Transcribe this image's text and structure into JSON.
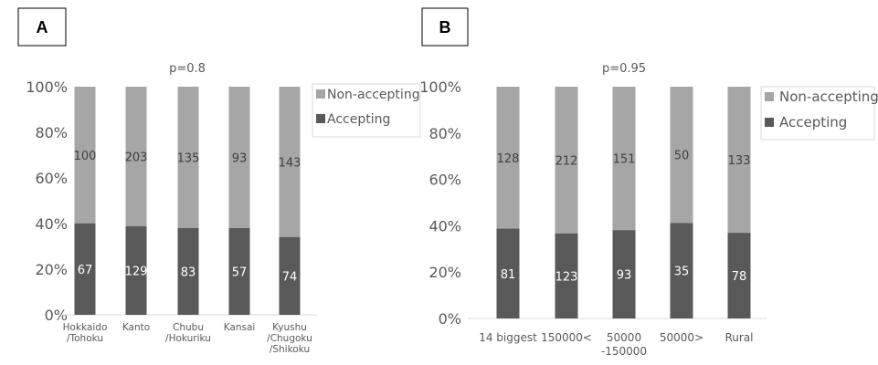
{
  "chart_data": [
    {
      "panel": "A",
      "type": "bar",
      "stacked": "percent",
      "annotation": "p=0.8",
      "categories": [
        "Hokkaido\n/Tohoku",
        "Kanto",
        "Chubu\n/Hokuriku",
        "Kansai",
        "Kyushu\n/Chugoku\n/Shikoku"
      ],
      "series": [
        {
          "name": "Accepting",
          "values": [
            67,
            129,
            83,
            57,
            74
          ],
          "color": "#595959"
        },
        {
          "name": "Non-accepting",
          "values": [
            100,
            203,
            135,
            93,
            143
          ],
          "color": "#a6a6a6"
        }
      ],
      "yticks": [
        "0%",
        "20%",
        "40%",
        "60%",
        "80%",
        "100%"
      ],
      "ylim": [
        0,
        100
      ],
      "legend": "right",
      "grid": false
    },
    {
      "panel": "B",
      "type": "bar",
      "stacked": "percent",
      "annotation": "p=0.95",
      "categories": [
        "14 biggest",
        "150000<",
        "50000\n-150000",
        "50000>",
        "Rural"
      ],
      "series": [
        {
          "name": "Accepting",
          "values": [
            81,
            123,
            93,
            35,
            78
          ],
          "color": "#595959"
        },
        {
          "name": "Non-accepting",
          "values": [
            128,
            212,
            151,
            50,
            133
          ],
          "color": "#a6a6a6"
        }
      ],
      "yticks": [
        "0%",
        "20%",
        "40%",
        "60%",
        "80%",
        "100%"
      ],
      "ylim": [
        0,
        100
      ],
      "legend": "right",
      "grid": false
    }
  ]
}
